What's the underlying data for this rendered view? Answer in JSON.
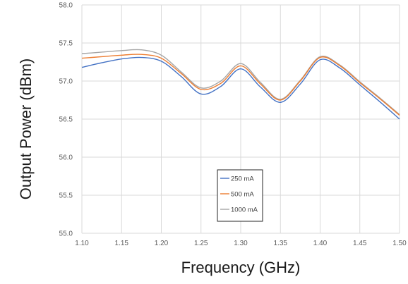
{
  "chart_data": {
    "type": "line",
    "title": "",
    "xlabel": "Frequency (GHz)",
    "ylabel": "Output Power (dBm)",
    "xlim": [
      1.1,
      1.5
    ],
    "ylim": [
      55.0,
      58.0
    ],
    "x_ticks": [
      "1.10",
      "1.15",
      "1.20",
      "1.25",
      "1.30",
      "1.35",
      "1.40",
      "1.45",
      "1.50"
    ],
    "y_ticks": [
      "55.0",
      "55.5",
      "56.0",
      "56.5",
      "57.0",
      "57.5",
      "58.0"
    ],
    "grid": true,
    "legend_position": "center-bottom",
    "x": [
      1.1,
      1.125,
      1.15,
      1.175,
      1.2,
      1.225,
      1.25,
      1.275,
      1.3,
      1.325,
      1.35,
      1.375,
      1.4,
      1.425,
      1.45,
      1.475,
      1.5
    ],
    "series": [
      {
        "name": "250 mA",
        "color": "#4472c4",
        "values": [
          57.18,
          57.24,
          57.29,
          57.31,
          57.26,
          57.06,
          56.83,
          56.93,
          57.16,
          56.92,
          56.72,
          56.96,
          57.28,
          57.17,
          56.95,
          56.73,
          56.5
        ]
      },
      {
        "name": "500 mA",
        "color": "#ed7d31",
        "values": [
          57.3,
          57.32,
          57.34,
          57.35,
          57.3,
          57.1,
          56.89,
          56.97,
          57.2,
          56.96,
          56.75,
          57.0,
          57.31,
          57.2,
          56.98,
          56.77,
          56.55
        ]
      },
      {
        "name": "1000 mA",
        "color": "#a5a5a5",
        "values": [
          57.36,
          57.38,
          57.4,
          57.41,
          57.34,
          57.12,
          56.91,
          57.0,
          57.23,
          56.98,
          56.76,
          57.01,
          57.32,
          57.21,
          56.99,
          56.78,
          56.56
        ]
      }
    ]
  }
}
